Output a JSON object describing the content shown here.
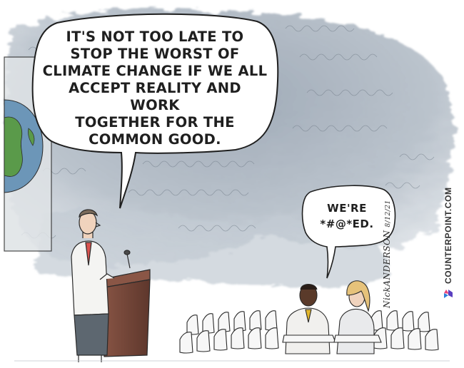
{
  "speaker_bubble": {
    "lines": "IT'S NOT TOO LATE TO\nSTOP THE WORST OF\nCLIMATE CHANGE IF WE ALL\nACCEPT REALITY AND WORK\nTOGETHER FOR THE\nCOMMON GOOD."
  },
  "audience_bubble": {
    "lines": "WE'RE\n*#@*ED."
  },
  "signature": {
    "artist": "NickANDERSON",
    "date": "8/12/21"
  },
  "credit": {
    "text": "COUNTERPOINT.COM",
    "logo_icon": "counterpoint-logo-icon",
    "logo_colors": [
      "#2e7fd9",
      "#e8457a",
      "#5a3fc0"
    ]
  },
  "colors": {
    "smog": "#8c98a6",
    "ink": "#2a2a2a",
    "podium": "#7a4a3c",
    "podium_dark": "#5e372c",
    "globe_water": "#6c96b8",
    "globe_land": "#5a9a4a",
    "coat": "#f4f4f2",
    "trousers": "#5d6770"
  }
}
